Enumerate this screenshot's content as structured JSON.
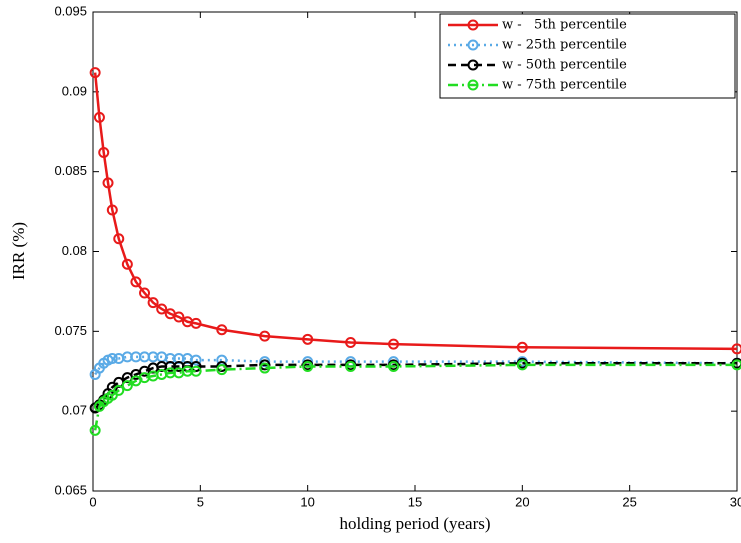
{
  "chart_data": {
    "type": "line",
    "xlabel": "holding period (years)",
    "ylabel": "IRR (%)",
    "x": [
      0.1,
      0.3,
      0.5,
      0.7,
      0.9,
      1.2,
      1.6,
      2,
      2.4,
      2.8,
      3.2,
      3.6,
      4,
      4.4,
      4.8,
      6,
      8,
      10,
      12,
      14,
      20,
      30
    ],
    "series": [
      {
        "name": "w -   5th percentile",
        "color": "#e81a1a",
        "line_style": "solid",
        "values": [
          0.0912,
          0.0884,
          0.0862,
          0.0843,
          0.0826,
          0.0808,
          0.0792,
          0.0781,
          0.0774,
          0.0768,
          0.0764,
          0.0761,
          0.0759,
          0.0756,
          0.0755,
          0.0751,
          0.0747,
          0.0745,
          0.0743,
          0.0742,
          0.074,
          0.0739
        ]
      },
      {
        "name": "w - 25th percentile",
        "color": "#5aaae6",
        "line_style": "dotted",
        "values": [
          0.0723,
          0.0727,
          0.073,
          0.0732,
          0.0733,
          0.0733,
          0.0734,
          0.0734,
          0.0734,
          0.0734,
          0.0734,
          0.0733,
          0.0733,
          0.0733,
          0.0732,
          0.0732,
          0.0731,
          0.0731,
          0.0731,
          0.0731,
          0.0731,
          0.073
        ]
      },
      {
        "name": "w - 50th percentile",
        "color": "#000000",
        "line_style": "dashed",
        "values": [
          0.0702,
          0.0704,
          0.0707,
          0.0711,
          0.0715,
          0.0718,
          0.0721,
          0.0723,
          0.0725,
          0.0727,
          0.0728,
          0.0728,
          0.0728,
          0.0728,
          0.0728,
          0.0728,
          0.0729,
          0.0729,
          0.0729,
          0.0729,
          0.073,
          0.073
        ]
      },
      {
        "name": "w - 75th percentile",
        "color": "#22dd22",
        "line_style": "dashdot",
        "values": [
          0.0688,
          0.0703,
          0.0706,
          0.0708,
          0.071,
          0.0713,
          0.0716,
          0.0719,
          0.0721,
          0.0722,
          0.0723,
          0.0724,
          0.0724,
          0.0725,
          0.0725,
          0.0726,
          0.0727,
          0.0728,
          0.0728,
          0.0728,
          0.0729,
          0.0729
        ]
      }
    ],
    "xlim": [
      0,
      30
    ],
    "xticks": [
      0,
      5,
      10,
      15,
      20,
      25,
      30
    ],
    "ylim": [
      0.065,
      0.095
    ],
    "yticks": [
      0.065,
      0.07,
      0.075,
      0.08,
      0.085,
      0.09,
      0.095
    ],
    "legend": "upper right",
    "marker": "open-circle"
  }
}
